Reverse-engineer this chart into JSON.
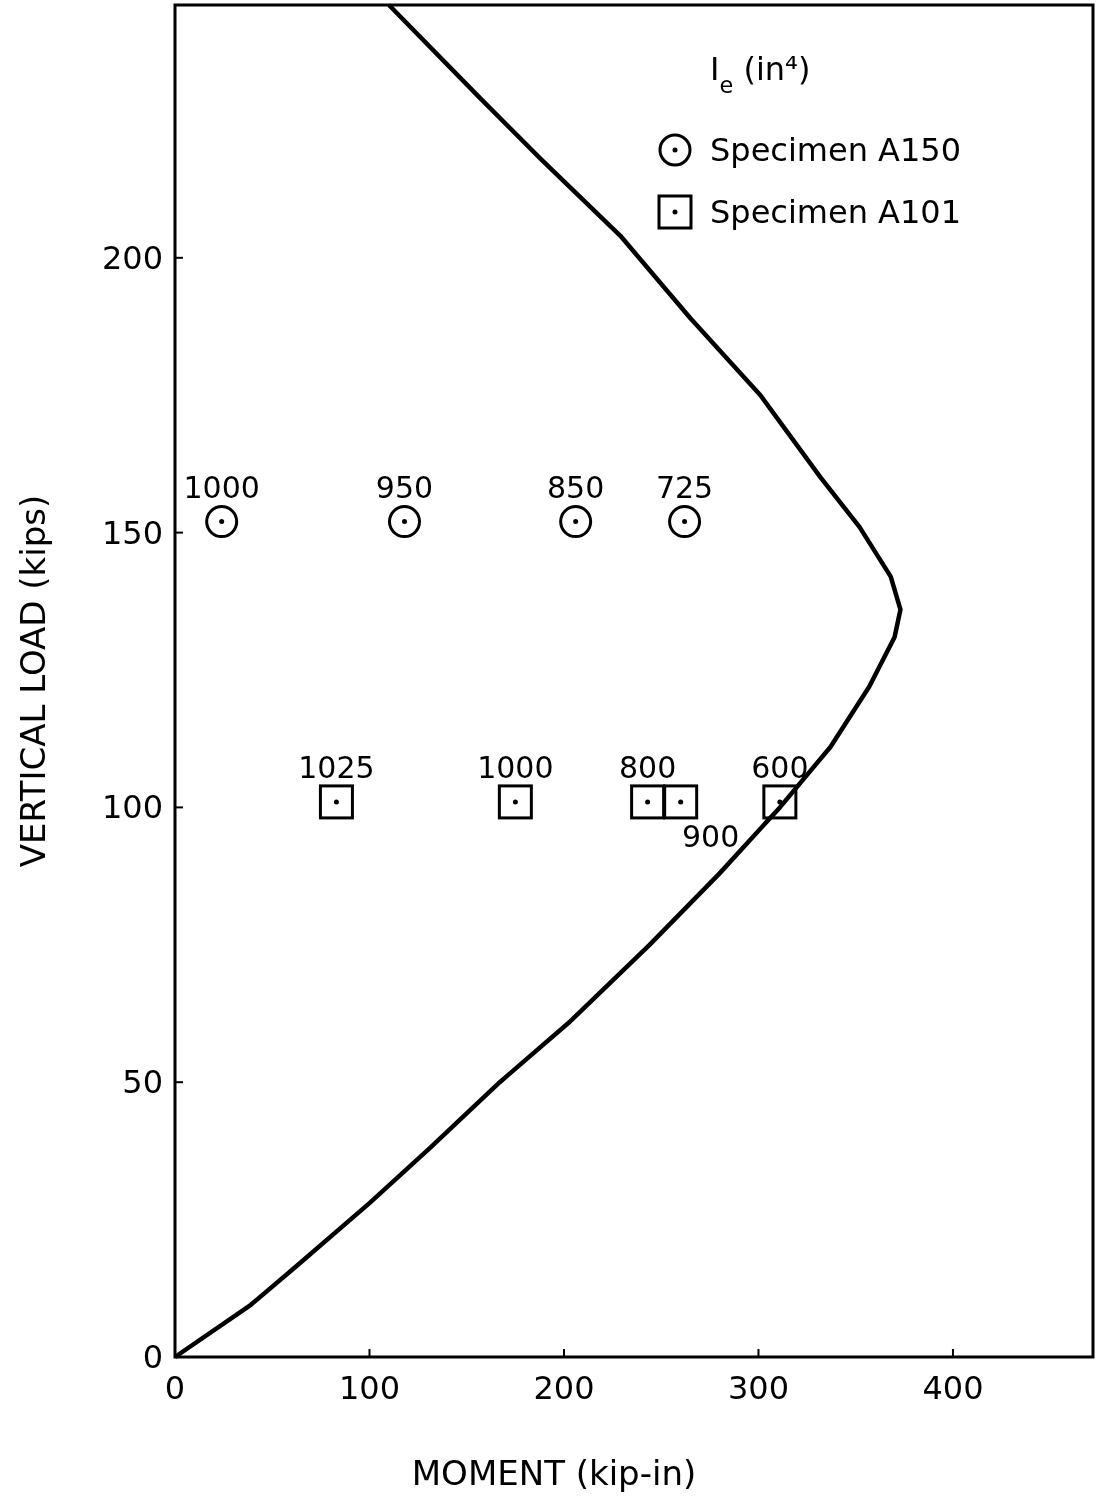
{
  "chart_data": {
    "type": "scatter",
    "xlabel": "MOMENT (kip-in)",
    "ylabel": "VERTICAL LOAD (kips)",
    "legend_title": "I$_{e}$ (in⁴)",
    "xlim": [
      0,
      472
    ],
    "ylim": [
      0,
      246
    ],
    "xticks": [
      0,
      100,
      200,
      300,
      400
    ],
    "yticks": [
      0,
      50,
      100,
      150,
      200
    ],
    "grid": false,
    "legend": "top right",
    "series": [
      {
        "name": "Specimen A150",
        "marker": "circle",
        "color": "#000000",
        "x": [
          24,
          118,
          206,
          262
        ],
        "values": [
          152,
          152,
          152,
          152
        ]
      },
      {
        "name": "Specimen A101",
        "marker": "square",
        "color": "#000000",
        "x": [
          83,
          175,
          243,
          260,
          311
        ],
        "values": [
          101,
          101,
          101,
          101,
          101
        ]
      },
      {
        "type": "line",
        "color": "#000000",
        "line_style": "solid",
        "marker": "none",
        "x": [
          0,
          39,
          64,
          100,
          131,
          167,
          203,
          244,
          280,
          311,
          337,
          357,
          370,
          373,
          368,
          352,
          332,
          301,
          265,
          229,
          188,
          157,
          110
        ],
        "values": [
          0,
          9.5,
          17,
          28,
          38,
          50,
          61,
          75,
          88,
          100,
          111,
          122,
          131,
          136,
          142,
          151,
          160,
          175,
          189,
          204,
          218,
          229,
          246
        ]
      }
    ],
    "annotations": [
      {
        "text": "1000",
        "x": 24,
        "y": 152
      },
      {
        "text": "950",
        "x": 118,
        "y": 152
      },
      {
        "text": "850",
        "x": 206,
        "y": 152
      },
      {
        "text": "725",
        "x": 262,
        "y": 152
      },
      {
        "text": "1025",
        "x": 83,
        "y": 101
      },
      {
        "text": "1000",
        "x": 175,
        "y": 101
      },
      {
        "text": "800",
        "x": 243,
        "y": 101
      },
      {
        "text": "900",
        "x": 260,
        "y": 101
      },
      {
        "text": "600",
        "x": 311,
        "y": 101
      }
    ]
  }
}
